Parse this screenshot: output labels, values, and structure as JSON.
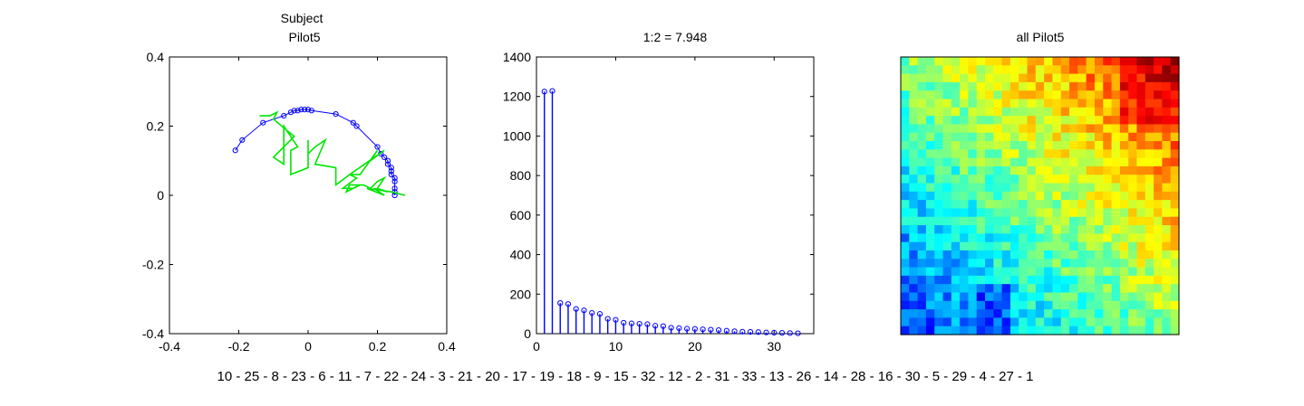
{
  "sequence_label": "10 - 25 - 8 - 23 - 6 - 11 - 7 - 22 - 24 - 3 - 21 - 20 - 17 - 19 - 18 - 9 - 15 - 32 - 12 - 2 - 31 - 33 - 13 - 26 - 14 - 28 - 16 - 30 - 5 - 29 - 4 - 27 - 1",
  "colors": {
    "series_blue": "#0000ff",
    "series_green": "#00e600",
    "axes": "#000000"
  },
  "chart_data": [
    {
      "type": "line",
      "title_line1": "Subject",
      "title_line2": "Pilot5",
      "xlim": [
        -0.4,
        0.4
      ],
      "ylim": [
        -0.4,
        0.4
      ],
      "xticks": [
        "-0.4",
        "-0.2",
        "0",
        "0.2",
        "0.4"
      ],
      "yticks": [
        "-0.4",
        "-0.2",
        "0",
        "0.2",
        "0.4"
      ],
      "series": [
        {
          "color": "#0000ff",
          "marker": "circle",
          "x": [
            -0.21,
            -0.19,
            -0.13,
            -0.07,
            -0.05,
            -0.04,
            -0.03,
            -0.02,
            -0.01,
            0.0,
            0.01,
            0.08,
            0.13,
            0.14,
            0.2,
            0.21,
            0.22,
            0.23,
            0.23,
            0.24,
            0.24,
            0.24,
            0.25,
            0.25,
            0.25,
            0.25,
            0.25
          ],
          "y": [
            0.13,
            0.16,
            0.21,
            0.23,
            0.24,
            0.245,
            0.245,
            0.248,
            0.248,
            0.248,
            0.245,
            0.235,
            0.21,
            0.2,
            0.14,
            0.12,
            0.11,
            0.1,
            0.09,
            0.08,
            0.07,
            0.06,
            0.05,
            0.04,
            0.02,
            0.01,
            0.0
          ]
        },
        {
          "color": "#00e600",
          "marker": "none",
          "x": [
            -0.14,
            -0.11,
            -0.09,
            -0.1,
            -0.04,
            -0.1,
            -0.07,
            -0.07,
            -0.03,
            -0.05,
            -0.05,
            0.0,
            0.0,
            0.0,
            0.02,
            0.05,
            0.02,
            0.08,
            0.08,
            0.12,
            0.15,
            0.2,
            0.18,
            0.22,
            0.12,
            0.14,
            0.1,
            0.13,
            0.15,
            0.11,
            0.12,
            0.16,
            0.18,
            0.2,
            0.22,
            0.2,
            0.23,
            0.19,
            0.22,
            0.17,
            0.24,
            0.28
          ],
          "y": [
            0.23,
            0.23,
            0.24,
            0.22,
            0.17,
            0.11,
            0.09,
            0.2,
            0.14,
            0.13,
            0.06,
            0.08,
            0.16,
            0.12,
            0.14,
            0.16,
            0.09,
            0.08,
            0.03,
            0.06,
            0.06,
            0.13,
            0.1,
            0.13,
            0.06,
            0.05,
            0.02,
            0.02,
            0.03,
            0.01,
            0.03,
            0.03,
            0.02,
            0.04,
            0.05,
            0.02,
            0.01,
            0.02,
            0.0,
            0.02,
            0.01,
            0.0
          ]
        }
      ]
    },
    {
      "type": "bar",
      "subtype": "stem",
      "title": "1:2 = 7.948",
      "xlim": [
        0,
        35
      ],
      "ylim": [
        0,
        1400
      ],
      "xticks": [
        "0",
        "10",
        "20",
        "30"
      ],
      "yticks": [
        "0",
        "200",
        "400",
        "600",
        "800",
        "1000",
        "1200",
        "1400"
      ],
      "x": [
        1,
        2,
        3,
        4,
        5,
        6,
        7,
        8,
        9,
        10,
        11,
        12,
        13,
        14,
        15,
        16,
        17,
        18,
        19,
        20,
        21,
        22,
        23,
        24,
        25,
        26,
        27,
        28,
        29,
        30,
        31,
        32,
        33
      ],
      "values": [
        1225,
        1228,
        155,
        150,
        125,
        118,
        105,
        100,
        75,
        70,
        55,
        52,
        50,
        48,
        40,
        38,
        30,
        28,
        25,
        24,
        22,
        20,
        18,
        15,
        12,
        10,
        9,
        8,
        6,
        5,
        4,
        3,
        2
      ],
      "color": "#0000ff"
    },
    {
      "type": "heatmap",
      "title": "all Pilot5",
      "rows": 33,
      "cols": 33,
      "colormap": "jet",
      "range": [
        0,
        1
      ],
      "description_of_pattern": "values increase toward upper-right; lowest at lower-left"
    }
  ]
}
